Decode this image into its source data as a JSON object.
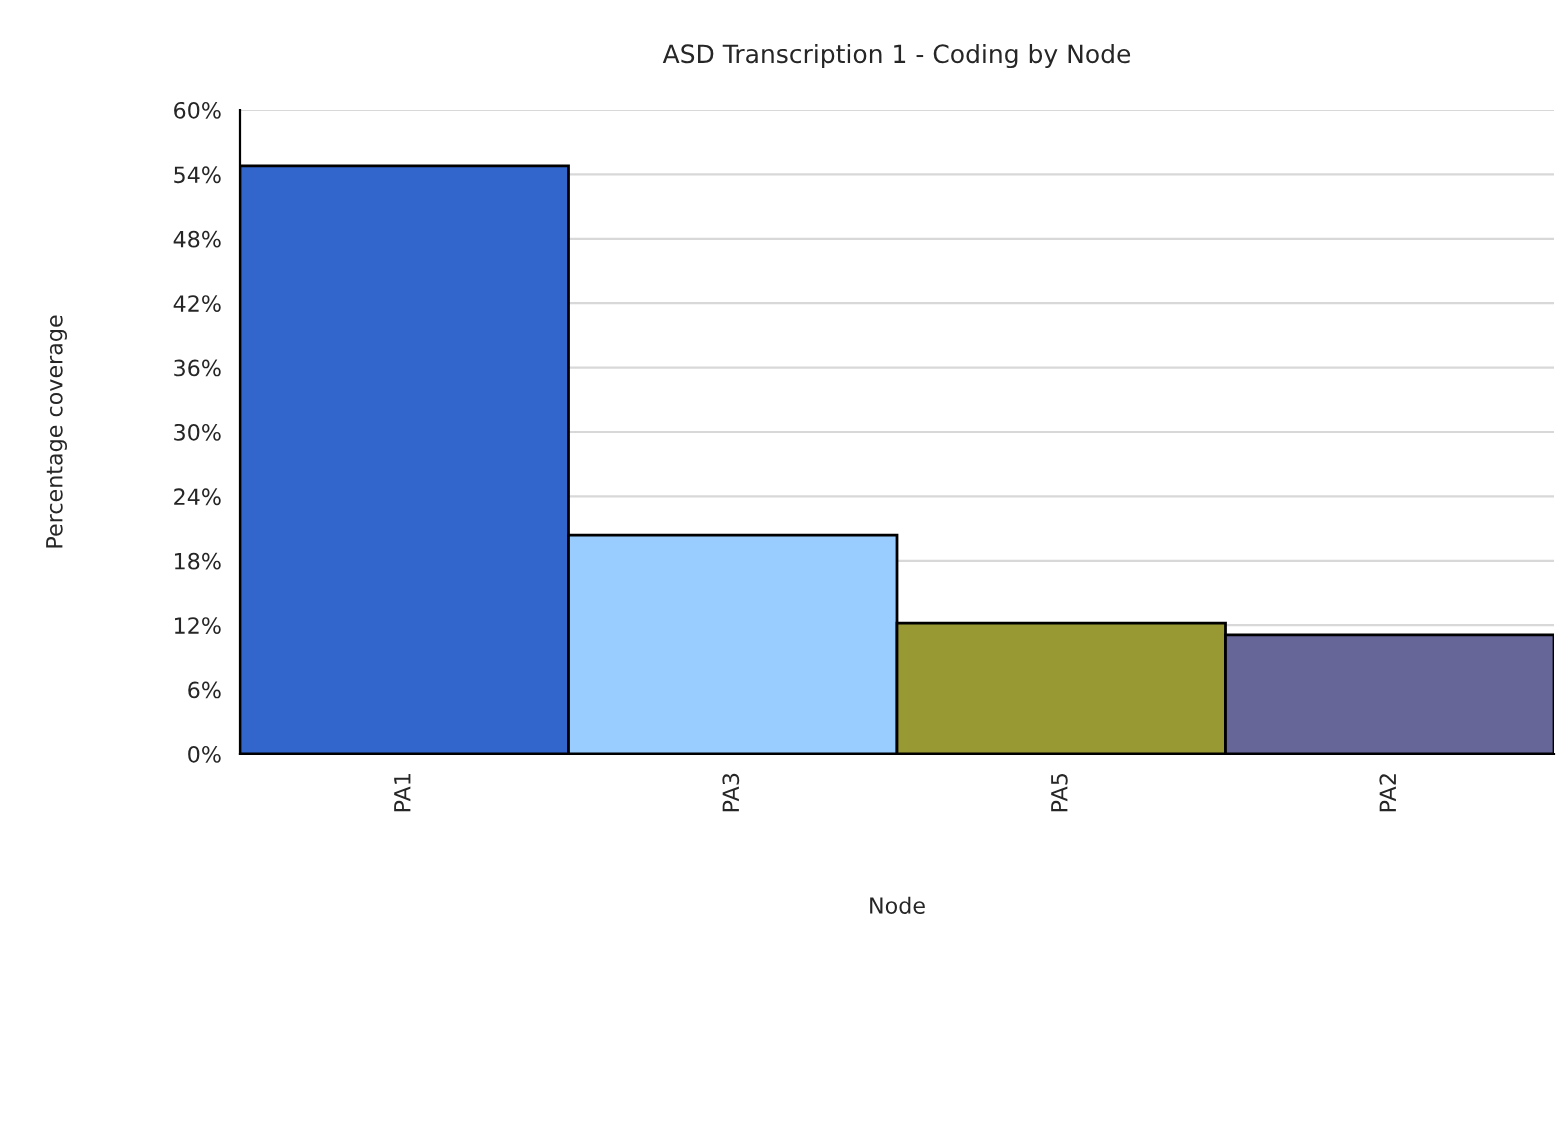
{
  "chart_data": {
    "type": "bar",
    "title": "ASD Transcription 1 - Coding by Node",
    "xlabel": "Node",
    "ylabel": "Percentage coverage",
    "categories": [
      "PA1",
      "PA3",
      "PA5",
      "PA2"
    ],
    "values": [
      54.8,
      20.4,
      12.2,
      11.1
    ],
    "colors": [
      "#3366cc",
      "#99ccff",
      "#999933",
      "#666699"
    ],
    "ylim": [
      0,
      60
    ],
    "yticks": [
      {
        "value": 0,
        "label": "0%"
      },
      {
        "value": 6,
        "label": "6%"
      },
      {
        "value": 12,
        "label": "12%"
      },
      {
        "value": 18,
        "label": "18%"
      },
      {
        "value": 24,
        "label": "24%"
      },
      {
        "value": 30,
        "label": "30%"
      },
      {
        "value": 36,
        "label": "36%"
      },
      {
        "value": 42,
        "label": "42%"
      },
      {
        "value": 48,
        "label": "48%"
      },
      {
        "value": 54,
        "label": "54%"
      },
      {
        "value": 60,
        "label": "60%"
      }
    ],
    "grid": "y",
    "legend": false
  }
}
